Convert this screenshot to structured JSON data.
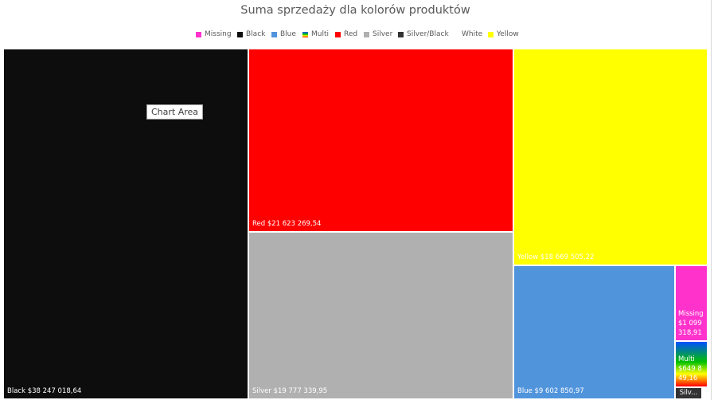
{
  "tooltip": "Chart Area",
  "chart_data": {
    "type": "treemap",
    "title": "Suma sprzedaży dla kolorów produktów",
    "legend_position": "top",
    "legend": [
      {
        "name": "Missing",
        "color": "#ff33cc"
      },
      {
        "name": "Black",
        "color": "#0d0d0d"
      },
      {
        "name": "Blue",
        "color": "#5094dc"
      },
      {
        "name": "Multi",
        "color": "gradient"
      },
      {
        "name": "Red",
        "color": "#ff0000"
      },
      {
        "name": "Silver",
        "color": "#b0b0b0"
      },
      {
        "name": "Silver/Black",
        "color": "#333333"
      },
      {
        "name": "White",
        "color": "#ffffff"
      },
      {
        "name": "Yellow",
        "color": "#ffff00"
      }
    ],
    "series": [
      {
        "name": "Black",
        "value": 38247018.64,
        "label": "$38 247 018,64",
        "color": "#0d0d0d"
      },
      {
        "name": "Red",
        "value": 21623269.54,
        "label": "$21 623 269,54",
        "color": "#ff0000"
      },
      {
        "name": "Silver",
        "value": 19777339.95,
        "label": "$19 777 339,95",
        "color": "#b0b0b0"
      },
      {
        "name": "Yellow",
        "value": 18669505.22,
        "label": "$18 669 505,22",
        "color": "#ffff00"
      },
      {
        "name": "Blue",
        "value": 9602850.97,
        "label": "$9 602 850,97",
        "color": "#5094dc"
      },
      {
        "name": "Missing",
        "value": 1099318.91,
        "label": "$1 099 318,91",
        "color": "#ff33cc"
      },
      {
        "name": "Multi",
        "value": 649849.16,
        "label": "$649 849,16",
        "color": "gradient"
      },
      {
        "name": "Silv...",
        "value": 0,
        "label": "",
        "color": "#333333"
      }
    ]
  }
}
